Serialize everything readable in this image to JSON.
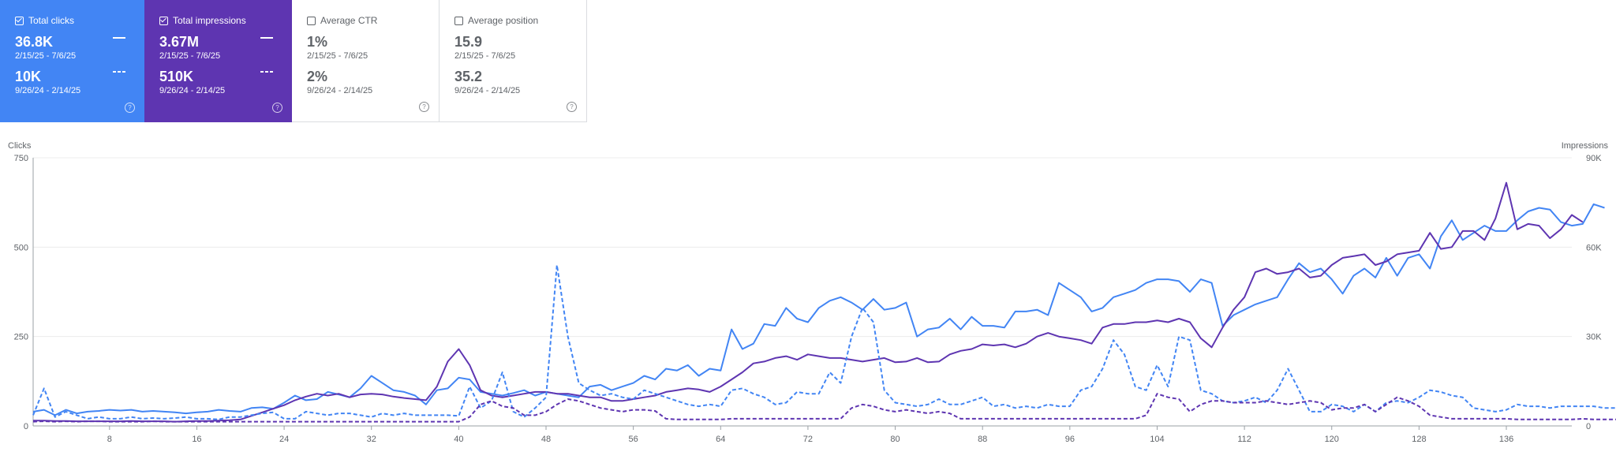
{
  "cards": [
    {
      "key": "clicks",
      "label": "Total clicks",
      "checked": true,
      "value1": "36.8K",
      "range1": "2/15/25 - 7/6/25",
      "value2": "10K",
      "range2": "9/26/24 - 2/14/25",
      "help": "?"
    },
    {
      "key": "impr",
      "label": "Total impressions",
      "checked": true,
      "value1": "3.67M",
      "range1": "2/15/25 - 7/6/25",
      "value2": "510K",
      "range2": "9/26/24 - 2/14/25",
      "help": "?"
    },
    {
      "key": "ctr",
      "label": "Average CTR",
      "checked": false,
      "value1": "1%",
      "range1": "2/15/25 - 7/6/25",
      "value2": "2%",
      "range2": "9/26/24 - 2/14/25",
      "help": "?"
    },
    {
      "key": "pos",
      "label": "Average position",
      "checked": false,
      "value1": "15.9",
      "range1": "2/15/25 - 7/6/25",
      "value2": "35.2",
      "range2": "9/26/24 - 2/14/25",
      "help": "?"
    }
  ],
  "chart_data": {
    "type": "line",
    "left_axis_title": "Clicks",
    "right_axis_title": "Impressions",
    "left_ticks": [
      "750",
      "500",
      "250",
      "0"
    ],
    "right_ticks": [
      "90K",
      "60K",
      "30K",
      "0"
    ],
    "ylim_left": [
      0,
      750
    ],
    "ylim_right": [
      0,
      90000
    ],
    "x_ticks": [
      "8",
      "16",
      "24",
      "32",
      "40",
      "48",
      "56",
      "64",
      "72",
      "80",
      "88",
      "96",
      "104",
      "112",
      "120",
      "128",
      "136"
    ],
    "x_tick_values": [
      8,
      16,
      24,
      32,
      40,
      48,
      56,
      64,
      72,
      80,
      88,
      96,
      104,
      112,
      120,
      128,
      136
    ],
    "xlim": [
      1,
      142
    ],
    "grid": true,
    "colors": {
      "clicks": "#4285f4",
      "impressions": "#5e35b1"
    },
    "series": [
      {
        "metric": "clicks",
        "axis": "left",
        "style": "solid",
        "values": [
          40,
          45,
          30,
          45,
          35,
          40,
          42,
          45,
          43,
          45,
          40,
          42,
          40,
          38,
          35,
          38,
          40,
          45,
          42,
          40,
          50,
          52,
          48,
          65,
          85,
          72,
          75,
          95,
          88,
          80,
          105,
          140,
          120,
          100,
          95,
          85,
          60,
          100,
          105,
          135,
          130,
          95,
          90,
          85,
          92,
          100,
          85,
          95,
          90,
          85,
          80,
          110,
          115,
          100,
          110,
          120,
          140,
          130,
          160,
          155,
          170,
          140,
          160,
          155,
          270,
          215,
          230,
          285,
          280,
          330,
          300,
          290,
          330,
          350,
          360,
          345,
          325,
          355,
          325,
          330,
          345,
          250,
          270,
          275,
          300,
          270,
          305,
          280,
          280,
          275,
          320,
          320,
          325,
          310,
          400,
          380,
          360,
          320,
          330,
          360,
          370,
          380,
          400,
          410,
          410,
          405,
          375,
          410,
          400,
          280,
          310,
          325,
          340,
          350,
          360,
          410,
          455,
          430,
          440,
          410,
          370,
          420,
          440,
          415,
          470,
          420,
          470,
          480,
          440,
          530,
          575,
          520,
          540,
          560,
          545,
          545,
          575,
          600,
          610,
          605,
          570,
          560,
          565,
          620,
          610
        ]
      },
      {
        "metric": "impressions",
        "axis": "left",
        "style": "solid",
        "values": [
          15,
          15,
          14,
          14,
          13,
          13,
          13,
          13,
          13,
          14,
          13,
          13,
          13,
          12,
          13,
          14,
          14,
          15,
          16,
          18,
          28,
          38,
          48,
          58,
          72,
          82,
          90,
          85,
          90,
          80,
          88,
          90,
          88,
          82,
          78,
          75,
          72,
          110,
          180,
          215,
          170,
          100,
          85,
          80,
          85,
          90,
          95,
          95,
          90,
          90,
          85,
          80,
          80,
          70,
          70,
          75,
          80,
          85,
          95,
          100,
          105,
          102,
          95,
          110,
          130,
          150,
          175,
          180,
          190,
          195,
          185,
          200,
          195,
          190,
          190,
          185,
          180,
          185,
          190,
          178,
          180,
          190,
          178,
          180,
          200,
          210,
          215,
          228,
          225,
          228,
          220,
          230,
          250,
          260,
          250,
          245,
          240,
          230,
          275,
          285,
          285,
          290,
          290,
          295,
          290,
          300,
          290,
          245,
          220,
          275,
          325,
          360,
          430,
          440,
          425,
          430,
          440,
          415,
          420,
          450,
          470,
          475,
          480,
          450,
          460,
          480,
          485,
          490,
          540,
          495,
          500,
          545,
          545,
          520,
          580,
          680,
          550,
          565,
          560,
          525,
          550,
          590,
          570
        ]
      },
      {
        "metric": "clicks",
        "axis": "left",
        "style": "dashed",
        "values": [
          30,
          105,
          25,
          40,
          30,
          20,
          25,
          20,
          20,
          25,
          20,
          22,
          20,
          22,
          25,
          20,
          20,
          18,
          25,
          25,
          30,
          35,
          38,
          20,
          20,
          40,
          35,
          30,
          35,
          35,
          30,
          25,
          35,
          30,
          35,
          30,
          30,
          30,
          30,
          28,
          110,
          50,
          70,
          150,
          40,
          25,
          50,
          80,
          450,
          250,
          120,
          100,
          85,
          90,
          80,
          75,
          100,
          90,
          80,
          70,
          60,
          55,
          60,
          55,
          100,
          105,
          90,
          80,
          60,
          65,
          95,
          90,
          90,
          150,
          120,
          250,
          330,
          290,
          100,
          65,
          60,
          55,
          60,
          75,
          60,
          60,
          70,
          80,
          55,
          60,
          50,
          55,
          50,
          60,
          55,
          55,
          100,
          110,
          160,
          240,
          200,
          110,
          100,
          170,
          110,
          250,
          240,
          100,
          90,
          70,
          65,
          70,
          80,
          65,
          100,
          160,
          100,
          40,
          40,
          60,
          55,
          40,
          60,
          40,
          65,
          70,
          65,
          80,
          100,
          95,
          85,
          80,
          50,
          45,
          40,
          45,
          60,
          55,
          55,
          50,
          55,
          55,
          55,
          55,
          50,
          50,
          45,
          45
        ]
      },
      {
        "metric": "impressions",
        "axis": "left",
        "style": "dashed",
        "values": [
          12,
          13,
          12,
          13,
          12,
          13,
          13,
          12,
          12,
          12,
          12,
          13,
          12,
          12,
          12,
          12,
          12,
          12,
          12,
          12,
          12,
          12,
          12,
          12,
          12,
          12,
          12,
          12,
          12,
          12,
          12,
          12,
          12,
          12,
          12,
          12,
          12,
          12,
          12,
          12,
          25,
          60,
          70,
          55,
          50,
          30,
          30,
          40,
          60,
          75,
          70,
          60,
          50,
          45,
          40,
          45,
          45,
          42,
          20,
          18,
          18,
          18,
          18,
          18,
          20,
          20,
          20,
          20,
          20,
          20,
          20,
          20,
          20,
          20,
          20,
          50,
          60,
          55,
          45,
          40,
          45,
          40,
          35,
          40,
          35,
          20,
          20,
          20,
          20,
          20,
          20,
          20,
          20,
          20,
          20,
          20,
          20,
          20,
          20,
          20,
          20,
          20,
          30,
          90,
          80,
          75,
          40,
          60,
          70,
          70,
          65,
          65,
          65,
          70,
          65,
          60,
          65,
          70,
          65,
          45,
          50,
          50,
          60,
          40,
          60,
          80,
          70,
          55,
          30,
          25,
          20,
          20,
          20,
          20,
          20,
          20,
          18,
          18,
          18,
          18,
          18,
          18,
          20,
          18,
          18,
          18,
          18,
          20
        ]
      }
    ]
  }
}
